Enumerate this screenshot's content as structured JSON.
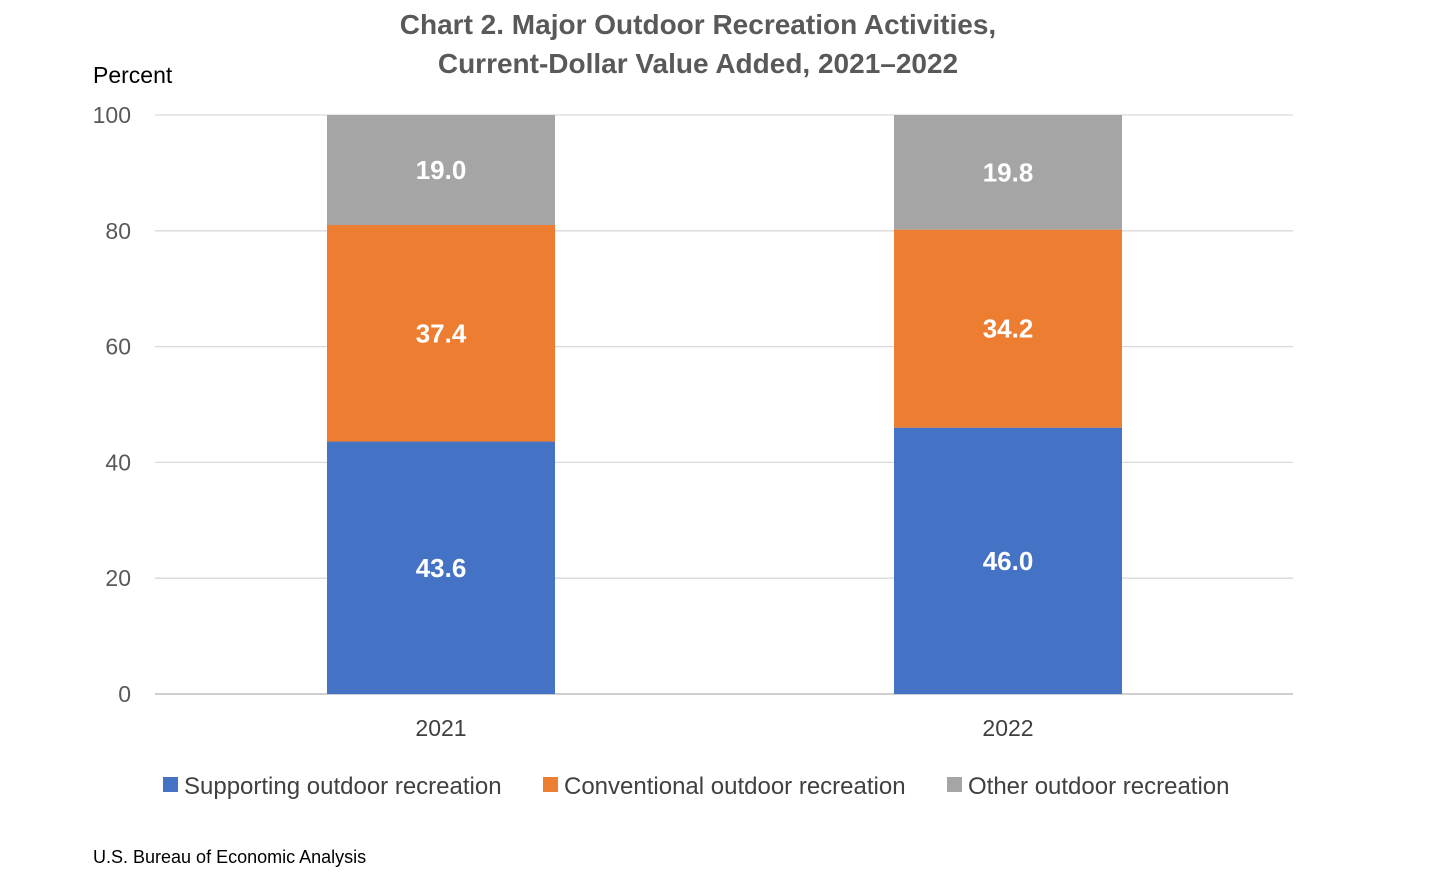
{
  "colors": {
    "supporting": "#4472C4",
    "conventional": "#ED7D31",
    "other": "#A5A5A5",
    "title": "#595959",
    "grid": "#D9D9D9"
  },
  "source": "U.S. Bureau of Economic Analysis",
  "chart_data": {
    "type": "bar",
    "stacked": true,
    "title": "Chart 2. Major Outdoor Recreation Activities,",
    "subtitle": "Current-Dollar Value Added, 2021–2022",
    "ylabel": "Percent",
    "xlabel": "",
    "ylim": [
      0,
      100
    ],
    "yticks": [
      0,
      20,
      40,
      60,
      80,
      100
    ],
    "grid": true,
    "legend_position": "bottom",
    "categories": [
      "2021",
      "2022"
    ],
    "series": [
      {
        "name": "Supporting outdoor recreation",
        "values": [
          43.6,
          46.0
        ],
        "labels": [
          "43.6",
          "46.0"
        ],
        "color": "#4472C4"
      },
      {
        "name": "Conventional outdoor recreation",
        "values": [
          37.4,
          34.2
        ],
        "labels": [
          "37.4",
          "34.2"
        ],
        "color": "#ED7D31"
      },
      {
        "name": "Other outdoor recreation",
        "values": [
          19.0,
          19.8
        ],
        "labels": [
          "19.0",
          "19.8"
        ],
        "color": "#A5A5A5"
      }
    ]
  }
}
